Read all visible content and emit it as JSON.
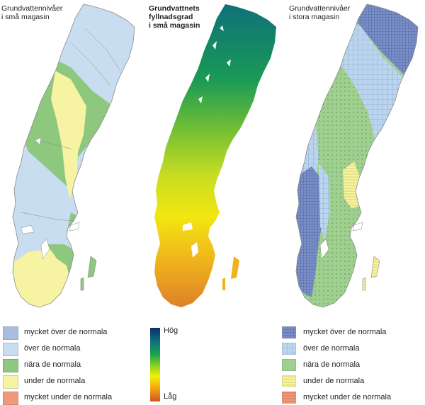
{
  "panels": [
    {
      "id": "small",
      "title_lines": [
        "Grundvattennivåer",
        "i små magasin"
      ]
    },
    {
      "id": "fill",
      "title_lines": [
        "Grundvattnets",
        "fyllnadsgrad",
        "i små magasin"
      ]
    },
    {
      "id": "large",
      "title_lines": [
        "Grundvattennivåer",
        "i stora magasin"
      ]
    }
  ],
  "legend_small": [
    {
      "label": "mycket över de normala",
      "color": "#a9bedf"
    },
    {
      "label": "över de normala",
      "color": "#c8ddf0"
    },
    {
      "label": "nära de normala",
      "color": "#8ec77e"
    },
    {
      "label": "under de normala",
      "color": "#f6f3a2"
    },
    {
      "label": "mycket under de normala",
      "color": "#ef9a7a"
    }
  ],
  "legend_gradient": {
    "high_label": "Hög",
    "low_label": "Låg"
  },
  "legend_large": [
    {
      "label": "mycket över de normala",
      "color": "#7a8fc7",
      "pattern": "grid-fine"
    },
    {
      "label": "över de normala",
      "color": "#bcd5ee",
      "pattern": "grid"
    },
    {
      "label": "nära de normala",
      "color": "#9fd08f",
      "pattern": "dots"
    },
    {
      "label": "under de normala",
      "color": "#f6f3a2",
      "pattern": "hlines"
    },
    {
      "label": "mycket under de normala",
      "color": "#ef9a7a",
      "pattern": "hlines"
    }
  ]
}
